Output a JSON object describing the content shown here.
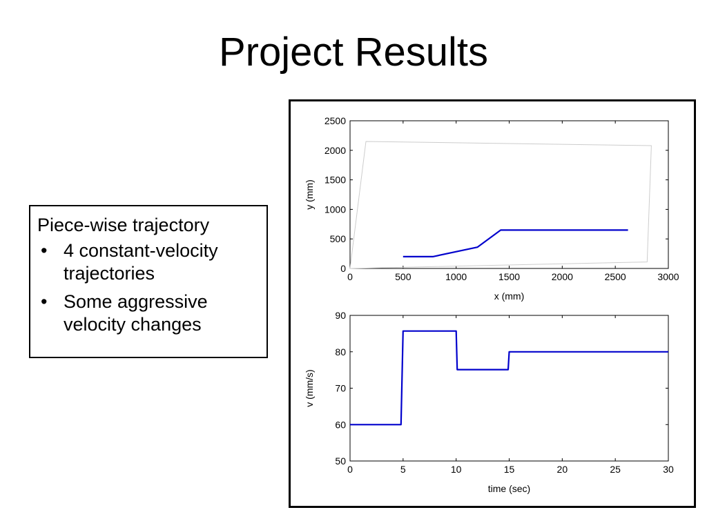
{
  "slide": {
    "title": "Project Results",
    "text_box": {
      "heading": "Piece-wise trajectory",
      "bullets": [
        "4 constant-velocity trajectories",
        "Some aggressive velocity changes"
      ],
      "bullet_glyph": "•"
    }
  },
  "chart_data": [
    {
      "type": "line",
      "title": "",
      "xlabel": "x (mm)",
      "ylabel": "y (mm)",
      "xlim": [
        0,
        3000
      ],
      "ylim": [
        0,
        2500
      ],
      "xticks": [
        0,
        500,
        1000,
        1500,
        2000,
        2500,
        3000
      ],
      "yticks": [
        0,
        500,
        1000,
        1500,
        2000,
        2500
      ],
      "grid": false,
      "series": [
        {
          "color": "#0000cc",
          "x": [
            500,
            780,
            1200,
            1420,
            2620
          ],
          "y": [
            200,
            200,
            360,
            650,
            650
          ]
        },
        {
          "color": "#cccccc",
          "closed": true,
          "x": [
            0,
            150,
            2840,
            2800,
            0
          ],
          "y": [
            0,
            2150,
            2080,
            110,
            0
          ]
        }
      ]
    },
    {
      "type": "line",
      "title": "",
      "xlabel": "time (sec)",
      "ylabel": "v (mm/s)",
      "xlim": [
        0,
        30
      ],
      "ylim": [
        50,
        90
      ],
      "xticks": [
        0,
        5,
        10,
        15,
        20,
        25,
        30
      ],
      "yticks": [
        50,
        60,
        70,
        80,
        90
      ],
      "grid": false,
      "series": [
        {
          "color": "#0000cc",
          "x": [
            0,
            4.8,
            5.0,
            10.0,
            10.1,
            14.9,
            15.0,
            30
          ],
          "y": [
            60,
            60,
            85.7,
            85.7,
            75.1,
            75.1,
            80,
            80
          ]
        }
      ]
    }
  ]
}
